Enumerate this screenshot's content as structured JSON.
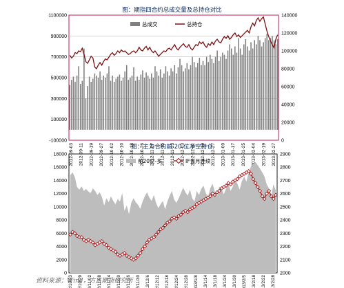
{
  "chart_data": [
    {
      "type": "bar+line",
      "title": "图：期指四合约总成交量及总持仓对比",
      "legend": {
        "position": "top-center",
        "entries": [
          "总成交",
          "总持仓"
        ]
      },
      "grid": true,
      "colors": {
        "bars": "#7f7f7f",
        "line": "#7a0f0f",
        "frame": "#c2185b"
      },
      "y_left": {
        "ticks": [
          "-100000",
          "100000",
          "300000",
          "500000",
          "700000",
          "900000",
          "1100000"
        ],
        "min": -100000,
        "max": 1100000
      },
      "y_right": {
        "ticks": [
          "0",
          "20000",
          "40000",
          "60000",
          "80000",
          "100000",
          "120000",
          "140000"
        ],
        "min": 0,
        "max": 140000
      },
      "x_ticks": [
        "2012-09-03",
        "2012-09-11",
        "2012-09-19",
        "2012-09-27",
        "2012-10-02",
        "2012-10-10",
        "2012-10-18",
        "2012-10-26",
        "2012-11-07",
        "2012-11-15",
        "2012-11-23",
        "2012-12-03",
        "2012-12-11",
        "2012-12-19",
        "2012-12-27",
        "2013-01-09",
        "2013-01-17",
        "2013-01-25",
        "2013-02-04",
        "2013-02-19",
        "2013-02-27"
      ],
      "volume_series": [
        430000,
        480000,
        510000,
        460000,
        520000,
        610000,
        440000,
        470000,
        780000,
        300000,
        420000,
        510000,
        460000,
        490000,
        540000,
        520000,
        500000,
        560000,
        480000,
        520000,
        500000,
        540000,
        610000,
        470000,
        520000,
        460000,
        490000,
        510000,
        530000,
        470000,
        500000,
        560000,
        620000,
        480000,
        500000,
        520000,
        600000,
        470000,
        510000,
        480000,
        530000,
        570000,
        500000,
        550000,
        520000,
        490000,
        540000,
        500000,
        610000,
        560000,
        520000,
        580000,
        500000,
        540000,
        610000,
        560000,
        520000,
        590000,
        560000,
        620000,
        540000,
        600000,
        680000,
        620000,
        560000,
        590000,
        640000,
        580000,
        620000,
        700000,
        650000,
        600000,
        640000,
        690000,
        620000,
        660000,
        620000,
        700000,
        650000,
        720000,
        680000,
        640000,
        700000,
        760000,
        660000,
        700000,
        740000,
        720000,
        680000,
        760000,
        820000,
        780000,
        720000,
        800000,
        740000,
        880000,
        780000,
        720000,
        820000,
        870000,
        800000,
        760000,
        840000,
        780000,
        860000,
        820000,
        900000,
        860000,
        800000,
        840000,
        880000,
        920000,
        860000,
        880000,
        900000,
        860000,
        820000,
        870000
      ],
      "open_interest_series": [
        95000,
        92000,
        94000,
        98000,
        97000,
        100000,
        99000,
        103000,
        96000,
        88000,
        86000,
        90000,
        94000,
        92000,
        82000,
        80000,
        84000,
        87000,
        84000,
        88000,
        91000,
        90000,
        93000,
        96000,
        98000,
        95000,
        97000,
        100000,
        98000,
        101000,
        99000,
        100000,
        98000,
        96000,
        97000,
        99000,
        100000,
        98000,
        100000,
        104000,
        101000,
        100000,
        103000,
        105000,
        101000,
        104000,
        100000,
        98000,
        100000,
        97000,
        94000,
        96000,
        98000,
        100000,
        99000,
        102000,
        103000,
        101000,
        104000,
        107000,
        103000,
        101000,
        104000,
        106000,
        108000,
        105000,
        104000,
        107000,
        103000,
        101000,
        104000,
        107000,
        106000,
        110000,
        108000,
        110000,
        106000,
        104000,
        108000,
        106000,
        110000,
        107000,
        111000,
        113000,
        110000,
        109000,
        113000,
        116000,
        114000,
        117000,
        113000,
        115000,
        118000,
        120000,
        116000,
        118000,
        115000,
        117000,
        119000,
        121000,
        123000,
        120000,
        127000,
        131000,
        128000,
        134000,
        137000,
        133000,
        136000,
        138000,
        130000,
        122000,
        116000,
        111000,
        107000,
        103000,
        113000,
        118000
      ]
    },
    {
      "type": "area+line",
      "title": "图：主力合约前 20 位净空持仓",
      "legend": {
        "position": "top-center",
        "entries": [
          "前20空-多",
          "IF当月连续"
        ]
      },
      "grid": false,
      "colors": {
        "area": "#bdbdbd",
        "line": "#a30d10",
        "marker_fill": "#ffffff",
        "frame": "#1a1a1a"
      },
      "y_left": {
        "ticks": [
          "0",
          "2000",
          "4000",
          "6000",
          "8000",
          "10000",
          "12000",
          "14000",
          "16000",
          "18000"
        ],
        "min": 0,
        "max": 18000
      },
      "y_right": {
        "ticks": [
          "2000",
          "2100",
          "2200",
          "2300",
          "2400",
          "2500",
          "2600",
          "2700",
          "2800",
          "2900"
        ],
        "min": 2000,
        "max": 2900
      },
      "x_ticks": [
        "2012/10/23",
        "2012/10/29",
        "2012/11/02",
        "2012/11/08",
        "2012/11/14",
        "2012/11/20",
        "2012/11/26",
        "2012/11/30",
        "2012/12/6",
        "2012/12/12",
        "2012/12/18",
        "2012/12/24",
        "2012/12/28",
        "2013/1/8",
        "2013/1/14",
        "2013/1/18",
        "2013/1/24",
        "2013/1/30",
        "2013/2/5",
        "2013/2/18",
        "2013/2/22",
        "2013/2/28"
      ],
      "net_short_series": [
        14800,
        15200,
        14500,
        13000,
        12600,
        13100,
        12400,
        12700,
        12300,
        12100,
        12800,
        12400,
        11800,
        12200,
        11500,
        10200,
        11300,
        10700,
        11600,
        10900,
        10400,
        11200,
        10800,
        12100,
        9400,
        10200,
        8900,
        10600,
        11300,
        10700,
        10300,
        9700,
        10800,
        11600,
        12200,
        11400,
        10900,
        11800,
        10600,
        9800,
        10400,
        10900,
        9600,
        10800,
        11700,
        12400,
        11100,
        10600,
        11300,
        12100,
        12900,
        12200,
        11700,
        12600,
        11300,
        10800,
        12400,
        11800,
        12700,
        13200,
        12100,
        11500,
        12800,
        13500,
        12300,
        11600,
        13100,
        12700,
        11900,
        12800,
        13600,
        12400,
        13100,
        14200,
        13500,
        12600,
        13900,
        14600,
        13800,
        15200,
        16100,
        16500,
        16800,
        16300,
        15800,
        15200,
        14600,
        13400,
        12800,
        11700,
        13400,
        12500
      ],
      "if_front_month_series": [
        2290,
        2310,
        2300,
        2280,
        2270,
        2270,
        2250,
        2240,
        2250,
        2240,
        2230,
        2210,
        2220,
        2230,
        2240,
        2220,
        2210,
        2190,
        2180,
        2170,
        2160,
        2140,
        2130,
        2140,
        2150,
        2130,
        2120,
        2110,
        2100,
        2110,
        2130,
        2150,
        2180,
        2200,
        2230,
        2250,
        2260,
        2270,
        2290,
        2310,
        2330,
        2340,
        2360,
        2380,
        2390,
        2410,
        2420,
        2410,
        2430,
        2440,
        2460,
        2470,
        2460,
        2480,
        2490,
        2500,
        2520,
        2530,
        2540,
        2550,
        2560,
        2570,
        2580,
        2600,
        2590,
        2610,
        2620,
        2640,
        2650,
        2660,
        2680,
        2670,
        2690,
        2700,
        2710,
        2730,
        2740,
        2750,
        2760,
        2770,
        2750,
        2710,
        2680,
        2650,
        2620,
        2580,
        2560,
        2600,
        2620,
        2580,
        2560,
        2590
      ]
    }
  ],
  "source": "资料来源：Wind，方正期货研究所"
}
